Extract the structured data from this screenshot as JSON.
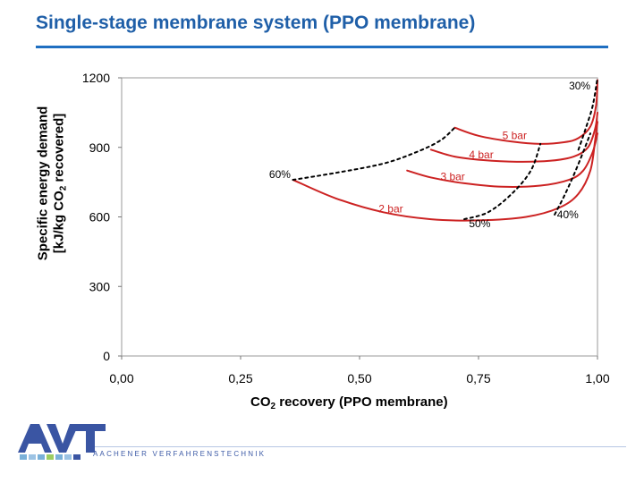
{
  "page": {
    "title": "Single-stage membrane system (PPO membrane)",
    "footer_tagline": "AACHENER VERFAHRENSTECHNIK",
    "logo_text": "AVT",
    "colors": {
      "title": "#1f5fa8",
      "rule": "#1f6fc1",
      "curve": "#cc2222",
      "dashed": "#000000"
    }
  },
  "chart_data": {
    "type": "line",
    "title": "",
    "xlabel_main": "CO",
    "xlabel_sub": "2",
    "xlabel_rest": " recovery (PPO membrane)",
    "ylabel_line1": "Specific energy demand",
    "ylabel_line2_pre": "[kJ/kg CO",
    "ylabel_line2_sub": "2",
    "ylabel_line2_post": " recovered]",
    "xlim": [
      0,
      1
    ],
    "ylim": [
      0,
      1200
    ],
    "x_ticks": [
      0,
      0.25,
      0.5,
      0.75,
      1.0
    ],
    "x_tick_labels": [
      "0,00",
      "0,25",
      "0,50",
      "0,75",
      "1,00"
    ],
    "y_ticks": [
      0,
      300,
      600,
      900,
      1200
    ],
    "y_tick_labels": [
      "0",
      "300",
      "600",
      "900",
      "1200"
    ],
    "grid": false,
    "series": [
      {
        "name": "2 bar",
        "style": "solid",
        "x": [
          0.36,
          0.45,
          0.55,
          0.65,
          0.75,
          0.85,
          0.92,
          0.96,
          0.985,
          0.995,
          1.0
        ],
        "y": [
          760,
          680,
          620,
          590,
          585,
          600,
          640,
          700,
          800,
          930,
          1010
        ]
      },
      {
        "name": "3 bar",
        "style": "solid",
        "x": [
          0.6,
          0.65,
          0.72,
          0.8,
          0.88,
          0.94,
          0.97,
          0.99,
          1.0
        ],
        "y": [
          800,
          770,
          745,
          730,
          735,
          760,
          800,
          880,
          960
        ]
      },
      {
        "name": "4 bar",
        "style": "solid",
        "x": [
          0.65,
          0.7,
          0.76,
          0.83,
          0.9,
          0.95,
          0.98,
          0.995,
          1.0
        ],
        "y": [
          890,
          860,
          845,
          838,
          842,
          860,
          900,
          980,
          1050
        ]
      },
      {
        "name": "5 bar",
        "style": "solid",
        "x": [
          0.7,
          0.75,
          0.82,
          0.88,
          0.93,
          0.96,
          0.985,
          0.997,
          1.0
        ],
        "y": [
          985,
          950,
          925,
          915,
          922,
          940,
          990,
          1080,
          1190
        ]
      },
      {
        "name": "60%",
        "style": "dashed",
        "x": [
          0.36,
          0.45,
          0.55,
          0.62,
          0.67,
          0.7
        ],
        "y": [
          760,
          790,
          830,
          880,
          930,
          985
        ]
      },
      {
        "name": "50%",
        "style": "dashed",
        "x": [
          0.72,
          0.77,
          0.82,
          0.86,
          0.88
        ],
        "y": [
          590,
          620,
          700,
          800,
          915
        ]
      },
      {
        "name": "40%",
        "style": "dashed",
        "x": [
          0.91,
          0.93,
          0.95,
          0.97,
          0.985
        ],
        "y": [
          610,
          690,
          780,
          880,
          960
        ]
      },
      {
        "name": "30%",
        "style": "dashed",
        "x": [
          0.96,
          0.975,
          0.99,
          1.0
        ],
        "y": [
          890,
          980,
          1080,
          1200
        ]
      }
    ],
    "annotations": [
      {
        "text": "5 bar",
        "x": 0.8,
        "y": 935,
        "color": "#cc2222"
      },
      {
        "text": "4 bar",
        "x": 0.73,
        "y": 852,
        "color": "#cc2222"
      },
      {
        "text": "3 bar",
        "x": 0.67,
        "y": 758,
        "color": "#cc2222"
      },
      {
        "text": "2 bar",
        "x": 0.54,
        "y": 620,
        "color": "#cc2222"
      },
      {
        "text": "60%",
        "x": 0.31,
        "y": 768,
        "color": "#000000"
      },
      {
        "text": "50%",
        "x": 0.73,
        "y": 555,
        "color": "#000000"
      },
      {
        "text": "40%",
        "x": 0.915,
        "y": 595,
        "color": "#000000"
      },
      {
        "text": "30%",
        "x": 0.94,
        "y": 1150,
        "color": "#000000"
      }
    ]
  }
}
